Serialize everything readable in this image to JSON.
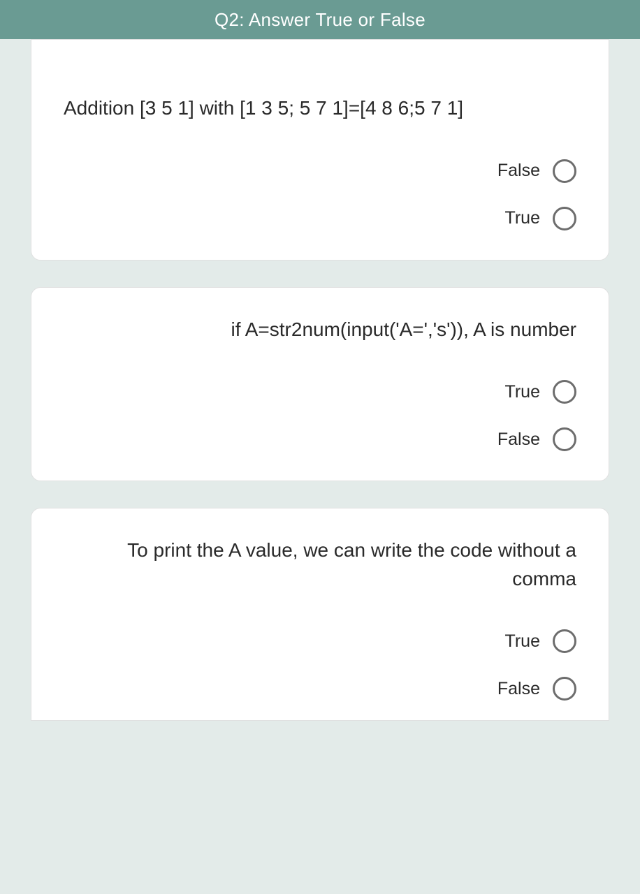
{
  "header": {
    "title": "Q2: Answer True or False",
    "bg_color": "#6a9b93",
    "text_color": "#ffffff"
  },
  "page": {
    "bg_color": "#e3ebe9",
    "card_bg": "#ffffff",
    "card_border": "#e0e0e0",
    "radio_border": "#6d6d6d",
    "text_color": "#2a2a2a"
  },
  "questions": [
    {
      "text": "Addition [3 5 1]  with [1 3 5; 5 7 1]=[4 8 6;5 7 1]",
      "align": "left",
      "options": [
        "False",
        "True"
      ]
    },
    {
      "text": "if A=str2num(input('A=','s')), A is number",
      "align": "right",
      "options": [
        "True",
        "False"
      ]
    },
    {
      "text": "To print the A value, we can write the code without a comma",
      "align": "right",
      "options": [
        "True",
        "False"
      ]
    }
  ]
}
